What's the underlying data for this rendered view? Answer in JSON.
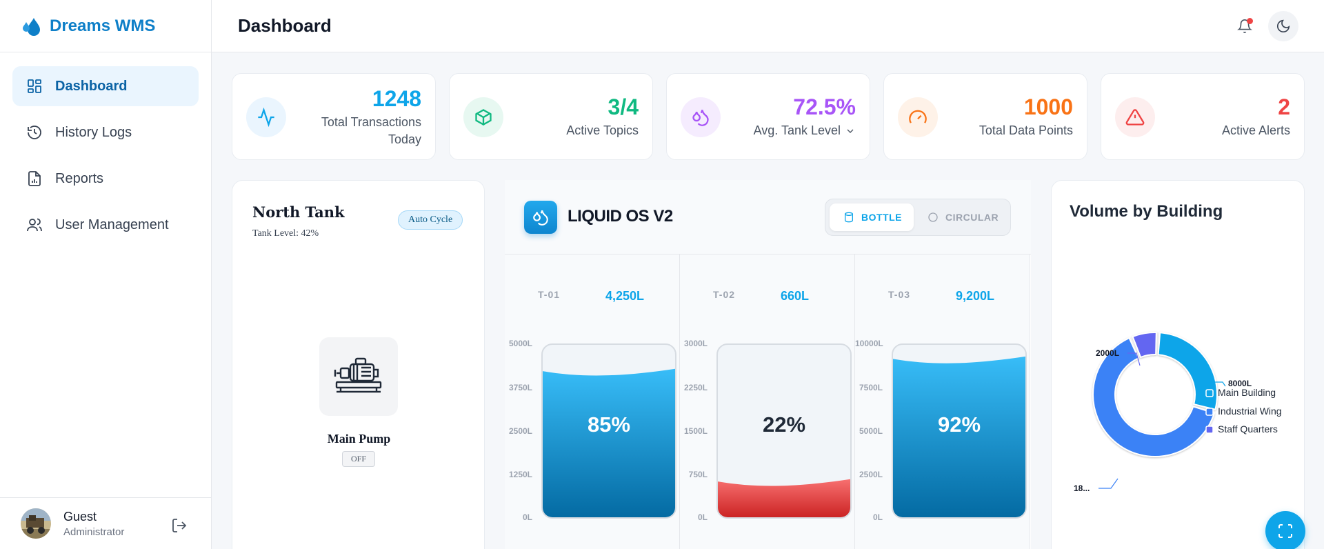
{
  "brand": {
    "name": "Dreams WMS"
  },
  "sidebar": {
    "items": [
      {
        "label": "Dashboard",
        "icon": "dashboard-grid-icon",
        "active": true
      },
      {
        "label": "History Logs",
        "icon": "history-icon"
      },
      {
        "label": "Reports",
        "icon": "report-icon"
      },
      {
        "label": "User Management",
        "icon": "users-icon"
      }
    ],
    "user": {
      "name": "Guest",
      "role": "Administrator"
    }
  },
  "header": {
    "title": "Dashboard"
  },
  "stats": [
    {
      "value": "1248",
      "label_line1": "Total Transactions",
      "label_line2": "Today",
      "color": "#0ea5e9",
      "icon": "activity-icon"
    },
    {
      "value": "3/4",
      "label": "Active Topics",
      "color": "#10b981",
      "icon": "cube-icon"
    },
    {
      "value": "72.5%",
      "label": "Avg. Tank Level",
      "color": "#a855f7",
      "icon": "droplets-icon"
    },
    {
      "value": "1000",
      "label": "Total Data Points",
      "color": "#f97316",
      "icon": "gauge-icon"
    },
    {
      "value": "2",
      "label": "Active Alerts",
      "color": "#ef4444",
      "icon": "alert-triangle-icon"
    }
  ],
  "north_tank": {
    "title": "North Tank",
    "level_text": "Tank Level: 42%",
    "badge": "Auto Cycle",
    "pump_name": "Main Pump",
    "pump_state": "OFF"
  },
  "liquid_os": {
    "title": "LIQUID OS V2",
    "view_bottle": "BOTTLE",
    "view_circular": "CIRCULAR",
    "tanks": [
      {
        "id": "T-01",
        "volume": "4,250L",
        "percent_label": "85%",
        "level": 0.85,
        "ticks": [
          "5000L",
          "3750L",
          "2500L",
          "1250L",
          "0L"
        ],
        "fill": "blue"
      },
      {
        "id": "T-02",
        "volume": "660L",
        "percent_label": "22%",
        "level": 0.22,
        "ticks": [
          "3000L",
          "2250L",
          "1500L",
          "750L",
          "0L"
        ],
        "fill": "red"
      },
      {
        "id": "T-03",
        "volume": "9,200L",
        "percent_label": "92%",
        "level": 0.92,
        "ticks": [
          "10000L",
          "7500L",
          "5000L",
          "2500L",
          "0L"
        ],
        "fill": "blue"
      }
    ]
  },
  "volume_by_building": {
    "title": "Volume by Building",
    "legend": [
      "Main Building",
      "Industrial Wing",
      "Staff Quarters"
    ],
    "labels": {
      "main": "8000L",
      "staff": "2000L",
      "industrial": "18..."
    }
  },
  "chart_data": {
    "type": "pie",
    "title": "Volume by Building",
    "categories": [
      "Main Building",
      "Industrial Wing",
      "Staff Quarters"
    ],
    "values": [
      8000,
      18000,
      2000
    ],
    "colors": [
      "#0ea5e9",
      "#3b82f6",
      "#6366f1"
    ],
    "legend_placement": "right"
  }
}
